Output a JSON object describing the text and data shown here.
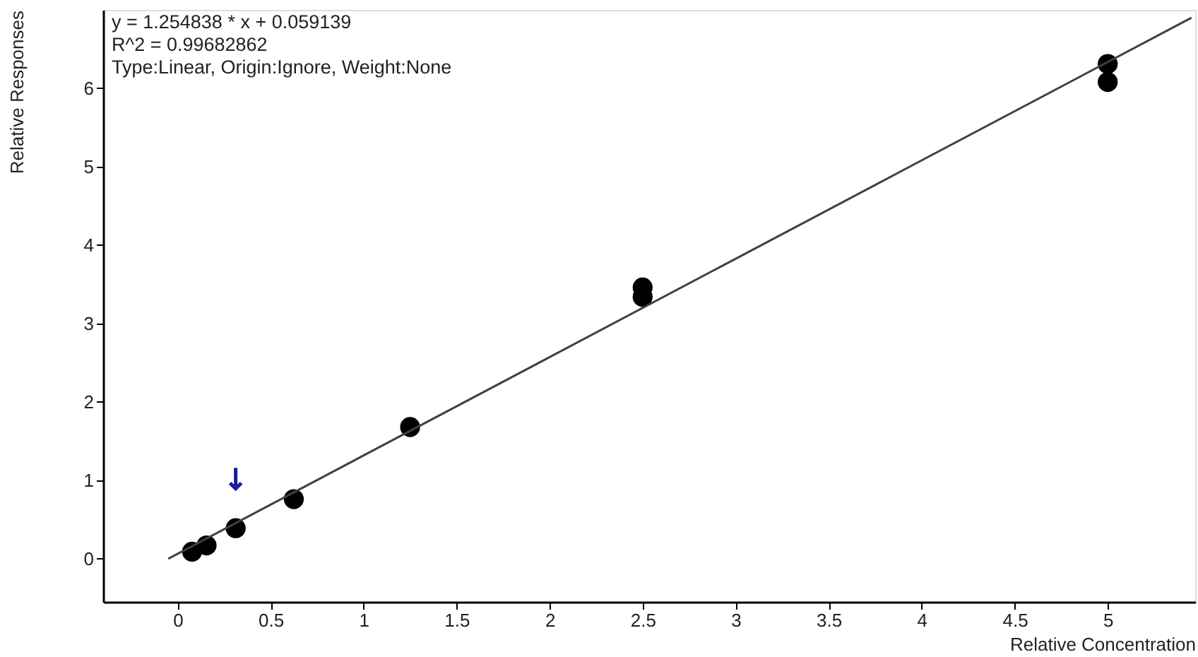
{
  "chart_data": {
    "type": "scatter",
    "xlabel": "Relative Concentration",
    "ylabel": "Relative Responses",
    "annotations": [
      "y = 1.254838 * x  + 0.059139",
      "R^2 = 0.99682862",
      "Type:Linear, Origin:Ignore, Weight:None"
    ],
    "xlim": [
      -0.4,
      5.47
    ],
    "ylim": [
      -0.55,
      7
    ],
    "xticks": [
      0,
      0.5,
      1,
      1.5,
      2,
      2.5,
      3,
      3.5,
      4,
      4.5,
      5
    ],
    "yticks": [
      0,
      1,
      2,
      3,
      4,
      5,
      6
    ],
    "grid": false,
    "marker": "circle",
    "series": [
      {
        "color": "#000000",
        "x": [
          0.078,
          0.156,
          0.3125,
          0.625,
          1.25,
          2.5,
          2.5,
          5,
          5
        ],
        "values": [
          0.09,
          0.17,
          0.39,
          0.76,
          1.68,
          3.34,
          3.46,
          6.08,
          6.31
        ]
      },
      {
        "type": "line",
        "marker": "none",
        "line_style": "solid",
        "color": "#404040",
        "x": [
          -0.05,
          5.45
        ],
        "values": [
          0.0,
          6.9
        ]
      }
    ]
  }
}
